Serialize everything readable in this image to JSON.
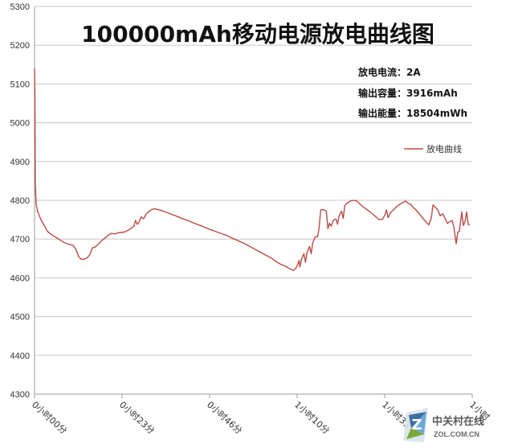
{
  "chart_data": {
    "type": "line",
    "title": "100000mAh移动电源放电曲线图",
    "xlabel": "",
    "ylabel": "",
    "ylim": [
      4300,
      5300
    ],
    "yticks": [
      4300,
      4400,
      4500,
      4600,
      4700,
      4800,
      4900,
      5000,
      5100,
      5200,
      5300
    ],
    "x_tick_labels": [
      "0小时00分",
      "0小时23分",
      "0小时46分",
      "1小时10分",
      "1小时33分",
      "1小时"
    ],
    "grid": true,
    "legend_position": "right",
    "color": "#b94a48",
    "series": [
      {
        "name": "放电曲线",
        "points": [
          [
            0,
            5140
          ],
          [
            0.5,
            5070
          ],
          [
            1,
            4840
          ],
          [
            2,
            4790
          ],
          [
            4,
            4770
          ],
          [
            8,
            4750
          ],
          [
            12,
            4735
          ],
          [
            16,
            4720
          ],
          [
            22,
            4710
          ],
          [
            30,
            4700
          ],
          [
            36,
            4692
          ],
          [
            42,
            4687
          ],
          [
            48,
            4684
          ],
          [
            52,
            4672
          ],
          [
            55,
            4655
          ],
          [
            58,
            4648
          ],
          [
            62,
            4648
          ],
          [
            66,
            4652
          ],
          [
            69,
            4660
          ],
          [
            72,
            4677
          ],
          [
            76,
            4680
          ],
          [
            80,
            4688
          ],
          [
            84,
            4696
          ],
          [
            88,
            4703
          ],
          [
            92,
            4710
          ],
          [
            96,
            4715
          ],
          [
            100,
            4713
          ],
          [
            104,
            4716
          ],
          [
            108,
            4717
          ],
          [
            112,
            4718
          ],
          [
            116,
            4722
          ],
          [
            120,
            4727
          ],
          [
            124,
            4733
          ],
          [
            126,
            4748
          ],
          [
            128,
            4738
          ],
          [
            130,
            4742
          ],
          [
            133,
            4757
          ],
          [
            136,
            4752
          ],
          [
            139,
            4764
          ],
          [
            142,
            4770
          ],
          [
            146,
            4776
          ],
          [
            150,
            4778
          ],
          [
            156,
            4775
          ],
          [
            162,
            4771
          ],
          [
            168,
            4766
          ],
          [
            176,
            4760
          ],
          [
            184,
            4753
          ],
          [
            192,
            4747
          ],
          [
            200,
            4740
          ],
          [
            208,
            4734
          ],
          [
            216,
            4727
          ],
          [
            224,
            4721
          ],
          [
            232,
            4715
          ],
          [
            240,
            4709
          ],
          [
            248,
            4701
          ],
          [
            256,
            4694
          ],
          [
            264,
            4686
          ],
          [
            272,
            4677
          ],
          [
            280,
            4668
          ],
          [
            288,
            4659
          ],
          [
            296,
            4650
          ],
          [
            302,
            4641
          ],
          [
            308,
            4634
          ],
          [
            313,
            4630
          ],
          [
            317,
            4625
          ],
          [
            320,
            4622
          ],
          [
            323,
            4619
          ],
          [
            326,
            4625
          ],
          [
            328,
            4633
          ],
          [
            330,
            4645
          ],
          [
            331,
            4628
          ],
          [
            333,
            4648
          ],
          [
            336,
            4662
          ],
          [
            338,
            4640
          ],
          [
            340,
            4666
          ],
          [
            343,
            4681
          ],
          [
            345,
            4662
          ],
          [
            347,
            4690
          ],
          [
            350,
            4705
          ],
          [
            353,
            4706
          ],
          [
            355,
            4728
          ],
          [
            357,
            4775
          ],
          [
            360,
            4776
          ],
          [
            364,
            4772
          ],
          [
            366,
            4727
          ],
          [
            368,
            4741
          ],
          [
            370,
            4733
          ],
          [
            373,
            4749
          ],
          [
            376,
            4752
          ],
          [
            378,
            4738
          ],
          [
            380,
            4760
          ],
          [
            383,
            4772
          ],
          [
            385,
            4753
          ],
          [
            387,
            4786
          ],
          [
            390,
            4793
          ],
          [
            394,
            4798
          ],
          [
            398,
            4800
          ],
          [
            402,
            4798
          ],
          [
            406,
            4790
          ],
          [
            410,
            4783
          ],
          [
            414,
            4777
          ],
          [
            418,
            4771
          ],
          [
            422,
            4764
          ],
          [
            426,
            4757
          ],
          [
            430,
            4750
          ],
          [
            434,
            4751
          ],
          [
            437,
            4762
          ],
          [
            439,
            4775
          ],
          [
            441,
            4755
          ],
          [
            444,
            4768
          ],
          [
            447,
            4774
          ],
          [
            450,
            4780
          ],
          [
            453,
            4786
          ],
          [
            456,
            4790
          ],
          [
            460,
            4795
          ],
          [
            463,
            4798
          ],
          [
            466,
            4792
          ],
          [
            469,
            4790
          ],
          [
            472,
            4782
          ],
          [
            475,
            4777
          ],
          [
            478,
            4770
          ],
          [
            482,
            4760
          ],
          [
            485,
            4752
          ],
          [
            488,
            4745
          ],
          [
            490,
            4740
          ],
          [
            492,
            4737
          ],
          [
            495,
            4755
          ],
          [
            497,
            4788
          ],
          [
            500,
            4782
          ],
          [
            503,
            4775
          ],
          [
            506,
            4760
          ],
          [
            509,
            4765
          ],
          [
            512,
            4754
          ],
          [
            515,
            4740
          ],
          [
            518,
            4745
          ],
          [
            521,
            4748
          ],
          [
            523,
            4732
          ],
          [
            526,
            4688
          ],
          [
            528,
            4718
          ],
          [
            530,
            4720
          ],
          [
            533,
            4770
          ],
          [
            535,
            4735
          ],
          [
            537,
            4745
          ],
          [
            539,
            4770
          ],
          [
            541,
            4738
          ],
          [
            543,
            4736
          ]
        ]
      }
    ]
  },
  "stats": [
    "放电电流：2A",
    "输出容量：3916mAh",
    "输出能量：18504mWh"
  ],
  "watermark": {
    "text": "中关村在线",
    "sub": "ZOL.COM.CN"
  }
}
